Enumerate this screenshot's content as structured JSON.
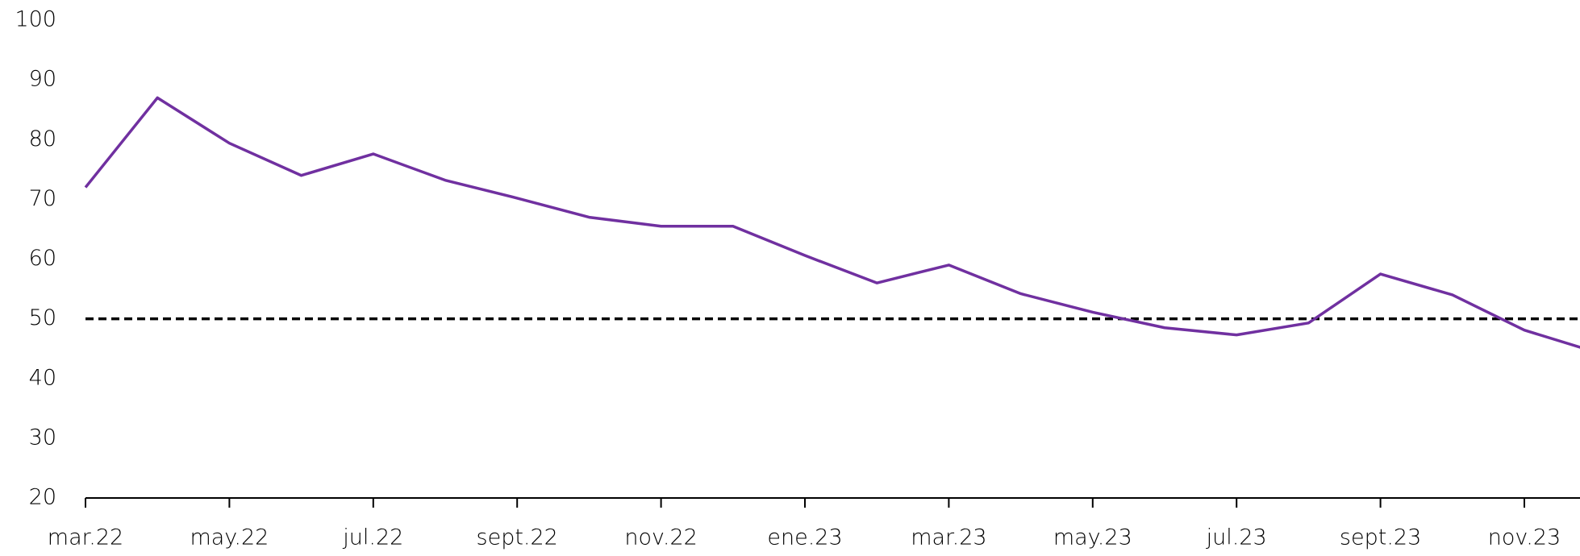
{
  "chart_data": {
    "type": "line",
    "categories": [
      "mar.22",
      null,
      "may.22",
      null,
      "jul.22",
      null,
      "sept.22",
      null,
      "nov.22",
      null,
      "ene.23",
      null,
      "mar.23",
      null,
      "may.23",
      null,
      "jul.23",
      null,
      "sept.23",
      null,
      "nov.23",
      null
    ],
    "series": [
      {
        "color": "#7030a0",
        "values": [
          72,
          87,
          79.4,
          74,
          77.6,
          73.2,
          70.2,
          67,
          65.5,
          65.5,
          60.6,
          56,
          59,
          54.2,
          51.1,
          48.5,
          47.3,
          49.3,
          57.5,
          54,
          48.1,
          44.4
        ]
      }
    ],
    "reference_line": {
      "value": 50,
      "color": "#000000",
      "dashed": true
    },
    "ylim": [
      20,
      100
    ],
    "yticks": [
      20,
      30,
      40,
      50,
      60,
      70,
      80,
      90,
      100
    ],
    "grid": false
  }
}
